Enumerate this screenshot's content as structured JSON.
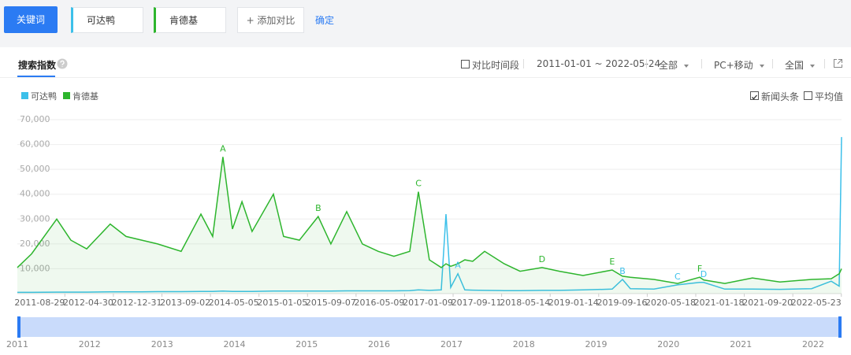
{
  "toolbar": {
    "keyword_button": "关键词",
    "keywords": [
      {
        "name": "可达鸭",
        "color": "#3cc0ea"
      },
      {
        "name": "肯德基",
        "color": "#2db52d"
      }
    ],
    "add_button": "+ 添加对比",
    "confirm": "确定"
  },
  "panel": {
    "tab": "搜索指数",
    "compare_period": "对比时间段",
    "date_range": "2011-01-01 ~ 2022-05-24",
    "filters": [
      "全部",
      "PC+移动",
      "全国"
    ],
    "options": [
      {
        "label": "新闻头条",
        "checked": true
      },
      {
        "label": "平均值",
        "checked": false
      }
    ]
  },
  "chart_data": {
    "type": "line",
    "x": [
      "2011-01-01",
      "2011-03-14",
      "2011-07-19",
      "2011-09-28",
      "2011-12-17",
      "2012-04-14",
      "2012-07-03",
      "2012-09-20",
      "2012-12-09",
      "2013-04-07",
      "2013-07-16",
      "2013-09-13",
      "2013-11-04",
      "2013-12-22",
      "2014-02-08",
      "2014-03-31",
      "2014-07-17",
      "2014-09-06",
      "2014-11-25",
      "2015-02-28",
      "2015-05-03",
      "2015-07-22",
      "2015-10-09",
      "2015-12-28",
      "2016-03-16",
      "2016-06-04",
      "2016-07-18",
      "2016-09-11",
      "2016-11-10",
      "2016-12-04",
      "2016-12-28",
      "2017-02-02",
      "2017-03-09",
      "2017-04-18",
      "2017-06-17",
      "2017-09-24",
      "2017-12-13",
      "2018-04-03",
      "2018-06-30",
      "2018-10-27",
      "2019-03-23",
      "2019-05-14",
      "2019-06-23",
      "2019-10-20",
      "2020-02-16",
      "2020-06-07",
      "2020-06-27",
      "2020-10-12",
      "2021-02-28",
      "2021-07-17",
      "2021-12-24",
      "2022-04-02",
      "2022-05-12",
      "2022-05-24"
    ],
    "series": [
      {
        "name": "可达鸭",
        "color": "#3cc0ea",
        "area": false,
        "values": [
          500,
          500,
          600,
          600,
          600,
          700,
          700,
          700,
          800,
          800,
          900,
          900,
          1000,
          900,
          900,
          900,
          1000,
          1000,
          1000,
          1000,
          1000,
          1100,
          1100,
          1100,
          1100,
          1200,
          1500,
          1300,
          1500,
          32000,
          2500,
          8000,
          1500,
          1400,
          1300,
          1200,
          1200,
          1300,
          1300,
          1500,
          1800,
          5700,
          2000,
          1800,
          3500,
          4500,
          4500,
          1800,
          1800,
          1700,
          2000,
          5000,
          3000,
          63000
        ]
      },
      {
        "name": "肯德基",
        "color": "#2db52d",
        "area": true,
        "values": [
          10500,
          16000,
          30000,
          21500,
          18000,
          28000,
          23000,
          21500,
          20000,
          17000,
          32000,
          23000,
          55000,
          26000,
          37000,
          25000,
          40000,
          23000,
          21500,
          31000,
          20000,
          33000,
          20000,
          17000,
          15000,
          17000,
          41000,
          13600,
          10500,
          12000,
          11000,
          12000,
          13600,
          13000,
          17000,
          12000,
          9000,
          10500,
          9000,
          7300,
          9500,
          7000,
          6600,
          5700,
          4100,
          6600,
          5500,
          4100,
          6300,
          4700,
          5700,
          6000,
          8000,
          10000
        ]
      }
    ],
    "xlim": [
      "2011-01-01",
      "2022-05-24"
    ],
    "xticks": [
      "2011-08-29",
      "2012-04-30",
      "2012-12-31",
      "2013-09-02",
      "2014-05-05",
      "2015-01-05",
      "2015-09-07",
      "2016-05-09",
      "2017-01-09",
      "2017-09-11",
      "2018-05-14",
      "2019-01-14",
      "2019-09-16",
      "2020-05-18",
      "2021-01-18",
      "2021-09-20",
      "2022-05-23"
    ],
    "ylim": [
      0,
      70000
    ],
    "yticks": [
      {
        "value": 10000,
        "label": "10,000"
      },
      {
        "value": 20000,
        "label": "20,000"
      },
      {
        "value": 30000,
        "label": "30,000"
      },
      {
        "value": 40000,
        "label": "40,000"
      },
      {
        "value": 50000,
        "label": "50,000"
      },
      {
        "value": 60000,
        "label": "60,000"
      },
      {
        "value": 70000,
        "label": "70,000"
      }
    ],
    "grid": true,
    "annotations": [
      {
        "text": "A",
        "x": "2013-11-04",
        "series": 1
      },
      {
        "text": "B",
        "x": "2015-02-28",
        "series": 1
      },
      {
        "text": "C",
        "x": "2016-07-18",
        "series": 1
      },
      {
        "text": "A",
        "x": "2017-02-02",
        "series": 0
      },
      {
        "text": "D",
        "x": "2018-04-03",
        "series": 1
      },
      {
        "text": "E",
        "x": "2019-03-23",
        "series": 1
      },
      {
        "text": "B",
        "x": "2019-05-14",
        "series": 0
      },
      {
        "text": "C",
        "x": "2020-02-16",
        "series": 0
      },
      {
        "text": "F",
        "x": "2020-06-07",
        "series": 1
      },
      {
        "text": "D",
        "x": "2020-06-27",
        "series": 0
      }
    ],
    "slider_ticks": [
      2011,
      2012,
      2013,
      2014,
      2015,
      2016,
      2017,
      2018,
      2019,
      2020,
      2021,
      2022
    ]
  }
}
